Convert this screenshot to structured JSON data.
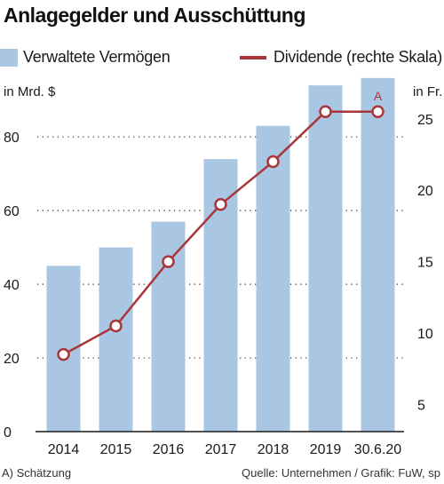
{
  "header": {
    "title": "Anlagegelder und Ausschüttung"
  },
  "legend": {
    "items": [
      {
        "label": "Verwaltete Vermögen",
        "color": "#a9c7e2",
        "kind": "bar"
      },
      {
        "label": "Dividende (rechte Skala)",
        "color": "#a8363b",
        "kind": "line"
      }
    ]
  },
  "footer": {
    "footnote": "A) Schätzung",
    "source": "Quelle: Unternehmen / Grafik: FuW, sp"
  },
  "chart_data": {
    "type": "bar",
    "title": "Anlagegelder und Ausschüttung",
    "categories": [
      "2014",
      "2015",
      "2016",
      "2017",
      "2018",
      "2019",
      "30.6.20"
    ],
    "left_axis": {
      "unit": "in Mrd. $",
      "ylim": [
        0,
        95
      ],
      "ticks": [
        0,
        20,
        40,
        60,
        80
      ]
    },
    "right_axis": {
      "unit": "in Fr.",
      "ylim": [
        3.1,
        27.6
      ],
      "ticks": [
        5,
        10,
        15,
        20,
        25
      ]
    },
    "grid": "dotted horizontal at left-axis ticks",
    "legend_position": "top",
    "series": [
      {
        "name": "Verwaltete Vermögen",
        "type": "bar",
        "axis": "left",
        "color": "#a9c7e2",
        "values": [
          45,
          50,
          57,
          74,
          83,
          94,
          96
        ]
      },
      {
        "name": "Dividende (rechte Skala)",
        "type": "line",
        "axis": "right",
        "color": "#a8363b",
        "values": [
          8.5,
          10.5,
          15,
          19,
          22,
          25.5,
          25.5
        ]
      }
    ],
    "annotations": [
      {
        "category": "30.6.20",
        "series": "Dividende (rechte Skala)",
        "text": "A"
      }
    ]
  }
}
